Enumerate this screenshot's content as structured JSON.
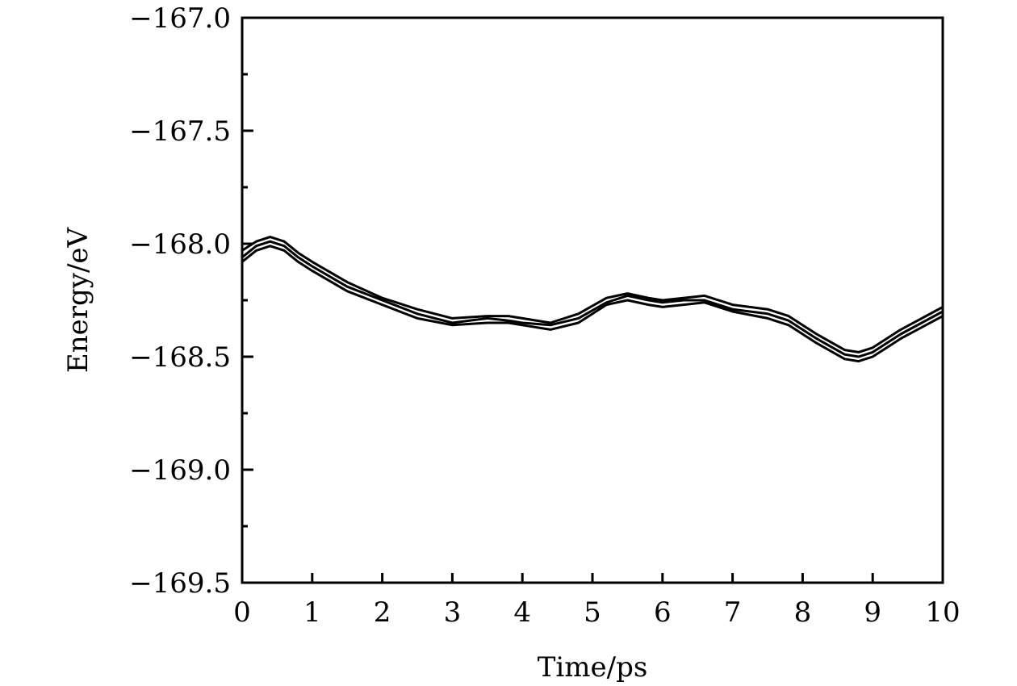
{
  "chart_data": {
    "type": "line",
    "title": "",
    "xlabel": "Time/ps",
    "ylabel": "Energy/eV",
    "xlim": [
      0,
      10
    ],
    "ylim": [
      -169.5,
      -167.0
    ],
    "x_ticks": [
      0,
      1,
      2,
      3,
      4,
      5,
      6,
      7,
      8,
      9,
      10
    ],
    "x_tick_labels": [
      "0",
      "1",
      "2",
      "3",
      "4",
      "5",
      "6",
      "7",
      "8",
      "9",
      "10"
    ],
    "y_ticks": [
      -167.0,
      -167.5,
      -168.0,
      -168.5,
      -169.0,
      -169.5
    ],
    "y_tick_labels": [
      "−167.0",
      "−167.5",
      "−168.0",
      "−168.5",
      "−169.0",
      "−169.5"
    ],
    "y_minor_ticks": [
      -167.25,
      -167.75,
      -168.25,
      -168.75,
      -169.25
    ],
    "grid": false,
    "legend": "none",
    "line_color": "#000000",
    "x": [
      0,
      0.2,
      0.4,
      0.6,
      0.8,
      1.0,
      1.5,
      2.0,
      2.5,
      3.0,
      3.5,
      3.8,
      4.0,
      4.4,
      4.8,
      5.2,
      5.5,
      5.8,
      6.0,
      6.3,
      6.6,
      7.0,
      7.5,
      7.8,
      8.2,
      8.6,
      8.8,
      9.0,
      9.4,
      9.7,
      10.0
    ],
    "series": [
      {
        "values": [
          -168.03,
          -167.99,
          -167.97,
          -167.99,
          -168.04,
          -168.08,
          -168.17,
          -168.24,
          -168.29,
          -168.33,
          -168.32,
          -168.32,
          -168.33,
          -168.35,
          -168.31,
          -168.24,
          -168.22,
          -168.24,
          -168.25,
          -168.24,
          -168.23,
          -168.27,
          -168.29,
          -168.32,
          -168.4,
          -168.47,
          -168.48,
          -168.46,
          -168.38,
          -168.33,
          -168.28
        ]
      },
      {
        "values": [
          -168.06,
          -168.01,
          -167.99,
          -168.01,
          -168.06,
          -168.1,
          -168.19,
          -168.25,
          -168.31,
          -168.35,
          -168.33,
          -168.34,
          -168.35,
          -168.36,
          -168.33,
          -168.26,
          -168.23,
          -168.25,
          -168.26,
          -168.25,
          -168.25,
          -168.29,
          -168.31,
          -168.34,
          -168.42,
          -168.49,
          -168.5,
          -168.48,
          -168.4,
          -168.35,
          -168.3
        ]
      },
      {
        "values": [
          -168.08,
          -168.03,
          -168.01,
          -168.03,
          -168.08,
          -168.12,
          -168.21,
          -168.27,
          -168.33,
          -168.36,
          -168.35,
          -168.35,
          -168.36,
          -168.38,
          -168.35,
          -168.27,
          -168.25,
          -168.27,
          -168.28,
          -168.27,
          -168.26,
          -168.3,
          -168.33,
          -168.36,
          -168.44,
          -168.51,
          -168.52,
          -168.5,
          -168.42,
          -168.37,
          -168.32
        ]
      }
    ]
  }
}
